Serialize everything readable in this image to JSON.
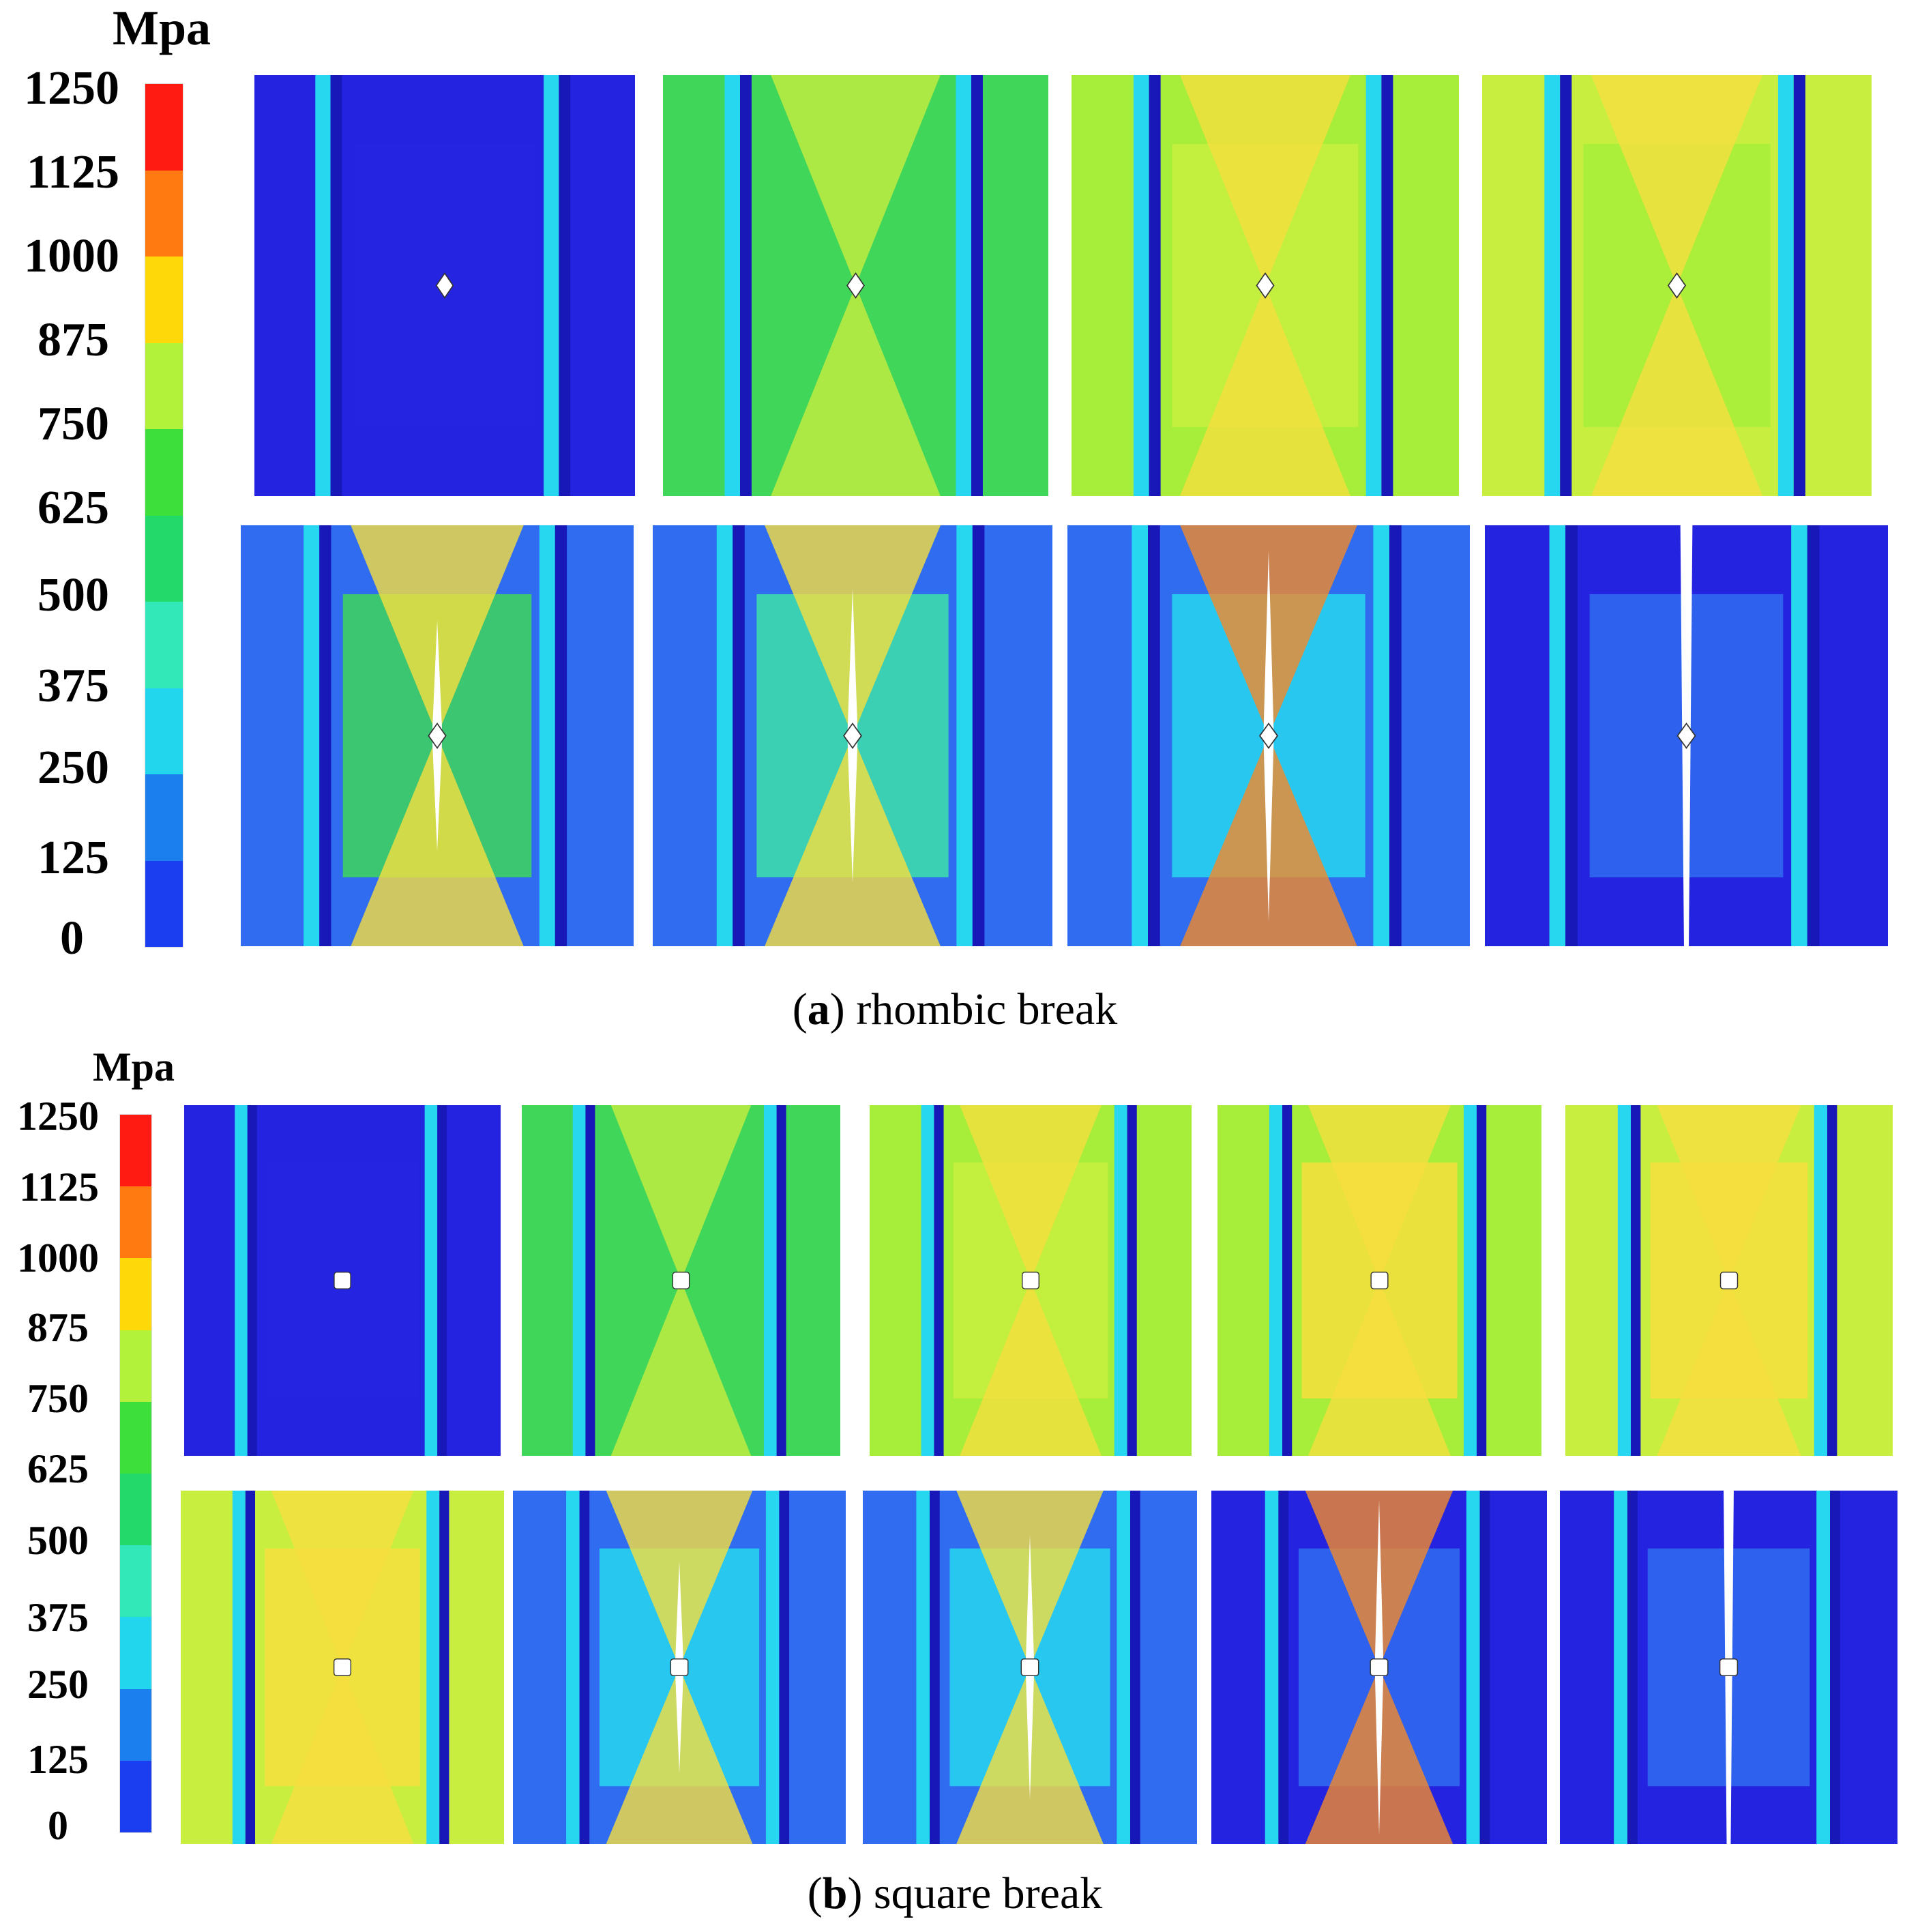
{
  "legend": {
    "unit": "Mpa",
    "ticks": [
      "1250",
      "1125",
      "1000",
      "875",
      "750",
      "625",
      "500",
      "375",
      "250",
      "125",
      "0"
    ],
    "colors": [
      "#ff1a12",
      "#ff7a10",
      "#ffd80a",
      "#b2f23a",
      "#3de03a",
      "#22d96a",
      "#33e8b8",
      "#22d6ee",
      "#1b80ee",
      "#1a3ef0"
    ]
  },
  "captions": {
    "a": {
      "letter": "a",
      "text": " rhombic break"
    },
    "b": {
      "letter": "b",
      "text": " square break"
    }
  },
  "palette": {
    "dark_blue": "#2424e0",
    "navy": "#1818b8",
    "mid_blue": "#2f6cf0",
    "cyan": "#27d7f0",
    "teal": "#3de0a8",
    "green": "#3fd65a",
    "lime": "#a6ee3a",
    "yellow_green": "#c8ee40",
    "yellow": "#f6de3e",
    "orange": "#f38a2a"
  }
}
